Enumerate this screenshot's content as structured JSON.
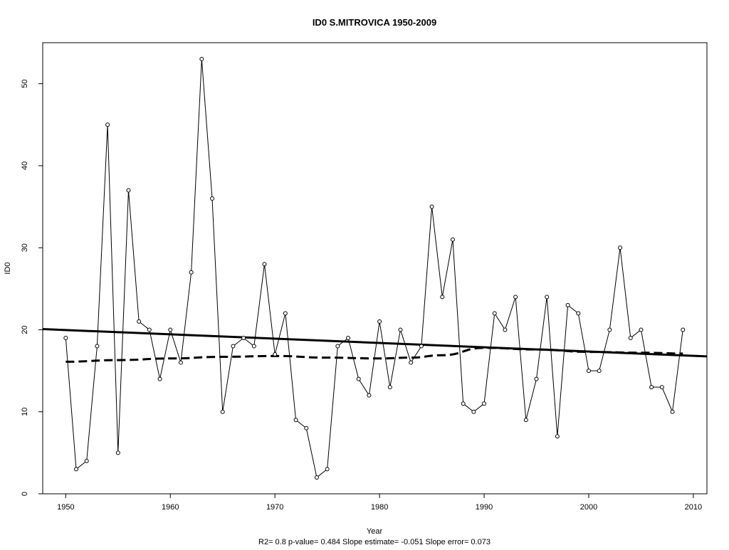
{
  "chart_data": {
    "type": "line",
    "title": "ID0    S.MITROVICA 1950-2009",
    "xlabel": "Year",
    "ylabel": "ID0",
    "footer": "R2= 0.8  p-value= 0.484  Slope estimate= -0.051  Slope error= 0.073",
    "xlim": [
      1947.8,
      2011.3
    ],
    "ylim": [
      0,
      55
    ],
    "x_ticks": [
      1950,
      1960,
      1970,
      1980,
      1990,
      2000,
      2010
    ],
    "y_ticks": [
      0,
      10,
      20,
      30,
      40,
      50
    ],
    "grid": false,
    "series": [
      {
        "style": "solid-thin-with-open-circles",
        "x": [
          1950,
          1951,
          1952,
          1953,
          1954,
          1955,
          1956,
          1957,
          1958,
          1959,
          1960,
          1961,
          1962,
          1963,
          1964,
          1965,
          1966,
          1967,
          1968,
          1969,
          1970,
          1971,
          1972,
          1973,
          1974,
          1975,
          1976,
          1977,
          1978,
          1979,
          1980,
          1981,
          1982,
          1983,
          1984,
          1985,
          1986,
          1987,
          1988,
          1989,
          1990,
          1991,
          1992,
          1993,
          1994,
          1995,
          1996,
          1997,
          1998,
          1999,
          2000,
          2001,
          2002,
          2003,
          2004,
          2005,
          2006,
          2007,
          2008,
          2009
        ],
        "y": [
          19,
          3,
          4,
          18,
          45,
          5,
          37,
          21,
          20,
          14,
          20,
          16,
          27,
          53,
          36,
          10,
          18,
          19,
          18,
          28,
          17,
          22,
          9,
          8,
          2,
          3,
          18,
          19,
          14,
          12,
          21,
          13,
          20,
          16,
          18,
          35,
          24,
          31,
          11,
          10,
          11,
          22,
          20,
          24,
          9,
          14,
          24,
          7,
          23,
          22,
          15,
          15,
          20,
          30,
          19,
          20,
          13,
          13,
          10,
          20
        ]
      },
      {
        "style": "solid-thick-trend",
        "x": [
          1947.8,
          2011.3
        ],
        "y": [
          20.08,
          16.75
        ]
      },
      {
        "style": "dashed-thick-smooth",
        "x": [
          1950,
          1955,
          1960,
          1965,
          1970,
          1975,
          1980,
          1983,
          1986,
          1990,
          1995,
          2000,
          2005,
          2009
        ],
        "y": [
          16.1,
          16.3,
          16.5,
          16.7,
          16.8,
          16.6,
          16.5,
          16.6,
          16.9,
          17.8,
          17.6,
          17.3,
          17.2,
          17.1
        ]
      }
    ]
  }
}
